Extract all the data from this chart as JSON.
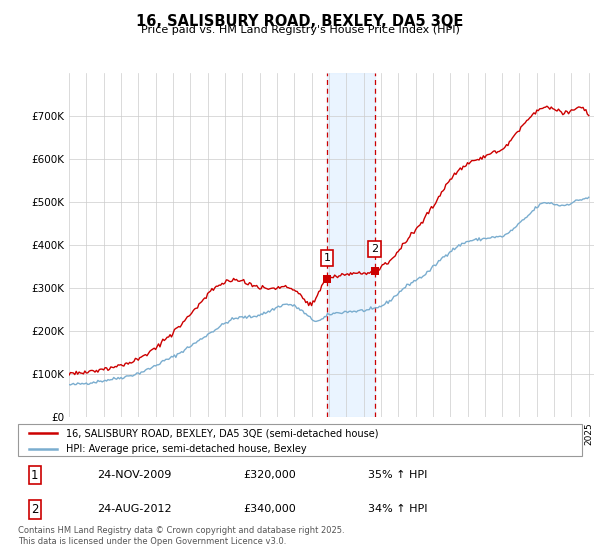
{
  "title": "16, SALISBURY ROAD, BEXLEY, DA5 3QE",
  "subtitle": "Price paid vs. HM Land Registry's House Price Index (HPI)",
  "legend_line1": "16, SALISBURY ROAD, BEXLEY, DA5 3QE (semi-detached house)",
  "legend_line2": "HPI: Average price, semi-detached house, Bexley",
  "footnote": "Contains HM Land Registry data © Crown copyright and database right 2025.\nThis data is licensed under the Open Government Licence v3.0.",
  "sale1_label": "1",
  "sale1_date": "24-NOV-2009",
  "sale1_price": "£320,000",
  "sale1_hpi": "35% ↑ HPI",
  "sale2_label": "2",
  "sale2_date": "24-AUG-2012",
  "sale2_price": "£340,000",
  "sale2_hpi": "34% ↑ HPI",
  "red_color": "#cc0000",
  "blue_color": "#7aadcf",
  "sale_marker_color": "#cc0000",
  "vline_color": "#cc0000",
  "shade_color": "#ddeeff",
  "ylim": [
    0,
    800000
  ],
  "yticks": [
    0,
    100000,
    200000,
    300000,
    400000,
    500000,
    600000,
    700000
  ],
  "ytick_labels": [
    "£0",
    "£100K",
    "£200K",
    "£300K",
    "£400K",
    "£500K",
    "£600K",
    "£700K"
  ],
  "sale1_x": 2009.9,
  "sale1_y": 320000,
  "sale2_x": 2012.65,
  "sale2_y": 340000,
  "xlim_left": 1995.0,
  "xlim_right": 2025.3
}
